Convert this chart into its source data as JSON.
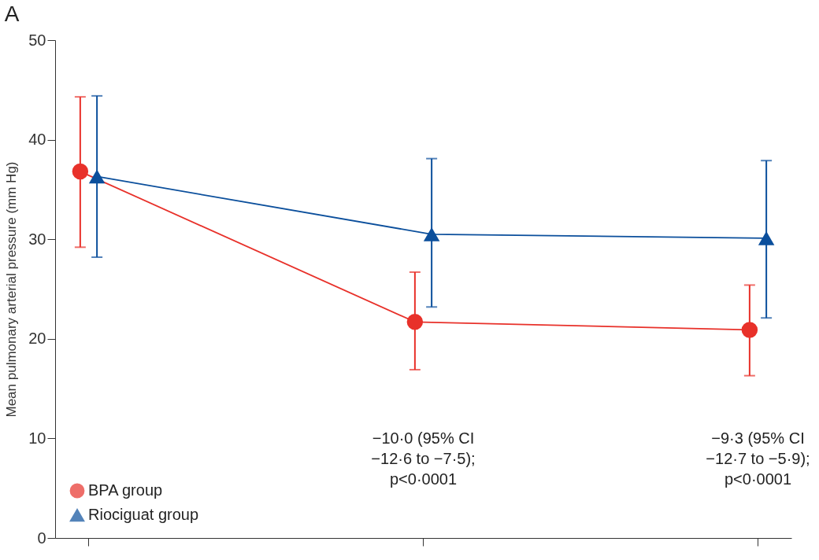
{
  "chart_data": {
    "type": "line",
    "title": "A",
    "ylabel": "Mean pulmonary arterial pressure (mm Hg)",
    "categories": [
      null,
      null,
      null
    ],
    "series": [
      {
        "name": "BPA group",
        "color": "#e8312a",
        "marker": "circle",
        "values": [
          36.8,
          21.7,
          20.9
        ],
        "errors": [
          [
            29.2,
            44.3
          ],
          [
            16.9,
            26.7
          ],
          [
            16.3,
            25.4
          ]
        ]
      },
      {
        "name": "Riociguat group",
        "color": "#0b4f9c",
        "marker": "triangle",
        "values": [
          36.3,
          30.5,
          30.1
        ],
        "errors": [
          [
            28.2,
            44.4
          ],
          [
            23.2,
            38.1
          ],
          [
            22.1,
            37.9
          ]
        ]
      }
    ],
    "ylim": [
      0,
      50
    ],
    "yticks": [
      0,
      10,
      20,
      30,
      40,
      50
    ],
    "grid": false,
    "legend": "bottom left",
    "tick_labels": "y",
    "annotations": [
      "−10·0 (95% CI\n−12·6 to −7·5);\np<0·0001",
      "−9·3 (95% CI\n−12·7 to −5·9);\np<0·0001"
    ]
  }
}
